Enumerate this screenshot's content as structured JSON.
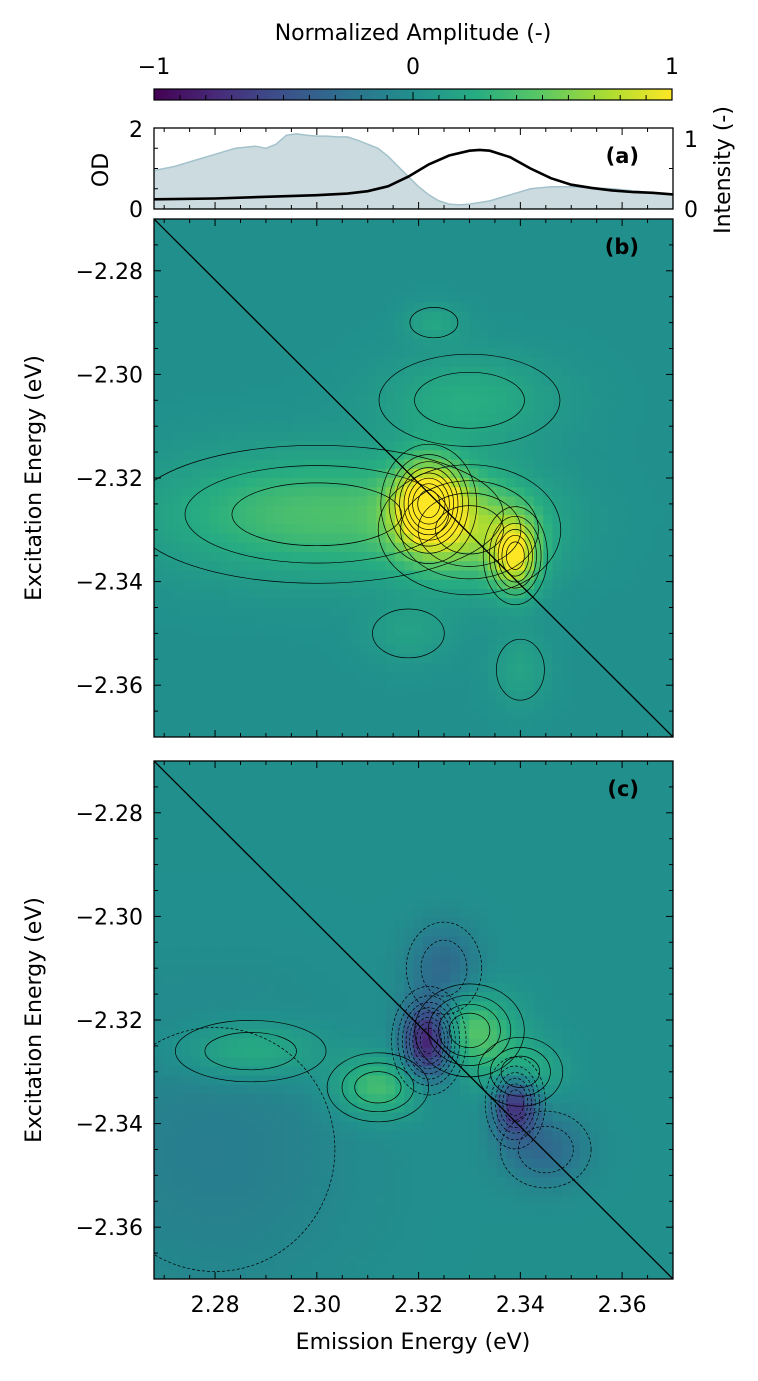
{
  "colorbar": {
    "label": "Normalized Amplitude (-)",
    "ticks": [
      "−1",
      "0",
      "1"
    ],
    "range": [
      -1,
      1
    ],
    "colormap": "viridis"
  },
  "chart_data": [
    {
      "panel": "(a)",
      "type": "area",
      "ylabel_left": "OD",
      "ylabel_right": "Intensity (-)",
      "x_range": [
        2.268,
        2.37
      ],
      "ylim_left": [
        0,
        2
      ],
      "ylim_right": [
        0,
        1
      ],
      "yticks_left": [
        "0",
        "2"
      ],
      "yticks_right": [
        "0",
        "1"
      ],
      "series": [
        {
          "kind": "filled-area",
          "axis": "left",
          "color": "#b9cfd6",
          "x": [
            2.268,
            2.272,
            2.276,
            2.28,
            2.284,
            2.288,
            2.29,
            2.292,
            2.294,
            2.296,
            2.298,
            2.3,
            2.302,
            2.304,
            2.306,
            2.308,
            2.31,
            2.312,
            2.314,
            2.316,
            2.318,
            2.32,
            2.322,
            2.324,
            2.326,
            2.328,
            2.33,
            2.334,
            2.338,
            2.342,
            2.346,
            2.35,
            2.354,
            2.358,
            2.362,
            2.366,
            2.37
          ],
          "y": [
            0.95,
            1.05,
            1.2,
            1.35,
            1.5,
            1.55,
            1.5,
            1.6,
            1.82,
            1.86,
            1.82,
            1.8,
            1.8,
            1.78,
            1.78,
            1.7,
            1.6,
            1.5,
            1.3,
            1.05,
            0.8,
            0.55,
            0.35,
            0.2,
            0.12,
            0.1,
            0.12,
            0.2,
            0.35,
            0.5,
            0.55,
            0.55,
            0.52,
            0.5,
            0.45,
            0.4,
            0.35
          ]
        },
        {
          "kind": "line",
          "axis": "right",
          "color": "#000000",
          "x": [
            2.268,
            2.28,
            2.29,
            2.3,
            2.306,
            2.31,
            2.314,
            2.318,
            2.322,
            2.326,
            2.33,
            2.332,
            2.334,
            2.338,
            2.342,
            2.346,
            2.35,
            2.354,
            2.358,
            2.362,
            2.366,
            2.37
          ],
          "y": [
            0.12,
            0.13,
            0.15,
            0.17,
            0.19,
            0.22,
            0.28,
            0.4,
            0.55,
            0.66,
            0.72,
            0.73,
            0.72,
            0.64,
            0.5,
            0.38,
            0.3,
            0.26,
            0.23,
            0.21,
            0.2,
            0.18
          ]
        }
      ]
    },
    {
      "panel": "(b)",
      "type": "heatmap",
      "ylabel": "Excitation Energy (eV)",
      "x_range": [
        2.268,
        2.37
      ],
      "y_range": [
        -2.27,
        -2.37
      ],
      "yticks": [
        "−2.28",
        "−2.30",
        "−2.32",
        "−2.34",
        "−2.36"
      ],
      "diagonal_line": true,
      "peaks": [
        {
          "x": 2.322,
          "y": -2.325,
          "amplitude": 1.0,
          "sx": 0.0045,
          "sy": 0.0055
        },
        {
          "x": 2.339,
          "y": -2.335,
          "amplitude": 0.78,
          "sx": 0.0032,
          "sy": 0.0048
        },
        {
          "x": 2.33,
          "y": -2.33,
          "amplitude": 0.55,
          "sx": 0.01,
          "sy": 0.007
        },
        {
          "x": 2.3,
          "y": -2.327,
          "amplitude": 0.42,
          "sx": 0.022,
          "sy": 0.008
        },
        {
          "x": 2.33,
          "y": -2.305,
          "amplitude": 0.25,
          "sx": 0.012,
          "sy": 0.006
        },
        {
          "x": 2.323,
          "y": -2.29,
          "amplitude": 0.18,
          "sx": 0.004,
          "sy": 0.0025
        },
        {
          "x": 2.34,
          "y": -2.357,
          "amplitude": 0.16,
          "sx": 0.004,
          "sy": 0.005
        },
        {
          "x": 2.318,
          "y": -2.35,
          "amplitude": 0.14,
          "sx": 0.006,
          "sy": 0.004
        }
      ]
    },
    {
      "panel": "(c)",
      "type": "heatmap",
      "ylabel": "Excitation Energy (eV)",
      "xlabel": "Emission Energy (eV)",
      "x_range": [
        2.268,
        2.37
      ],
      "y_range": [
        -2.27,
        -2.37
      ],
      "xticks": [
        "2.28",
        "2.30",
        "2.32",
        "2.34",
        "2.36"
      ],
      "yticks": [
        "−2.28",
        "−2.30",
        "−2.32",
        "−2.34",
        "−2.36"
      ],
      "diagonal_line": true,
      "peaks": [
        {
          "x": 2.322,
          "y": -2.324,
          "amplitude": -0.95,
          "sx": 0.0035,
          "sy": 0.005
        },
        {
          "x": 2.339,
          "y": -2.336,
          "amplitude": -0.75,
          "sx": 0.003,
          "sy": 0.0045
        },
        {
          "x": 2.33,
          "y": -2.322,
          "amplitude": 0.5,
          "sx": 0.006,
          "sy": 0.005
        },
        {
          "x": 2.34,
          "y": -2.33,
          "amplitude": 0.35,
          "sx": 0.005,
          "sy": 0.004
        },
        {
          "x": 2.312,
          "y": -2.333,
          "amplitude": 0.42,
          "sx": 0.006,
          "sy": 0.004
        },
        {
          "x": 2.287,
          "y": -2.326,
          "amplitude": 0.3,
          "sx": 0.01,
          "sy": 0.004
        },
        {
          "x": 2.325,
          "y": -2.31,
          "amplitude": -0.3,
          "sx": 0.005,
          "sy": 0.006
        },
        {
          "x": 2.345,
          "y": -2.345,
          "amplitude": -0.3,
          "sx": 0.006,
          "sy": 0.005
        },
        {
          "x": 2.28,
          "y": -2.345,
          "amplitude": -0.15,
          "sx": 0.02,
          "sy": 0.02
        }
      ]
    }
  ]
}
